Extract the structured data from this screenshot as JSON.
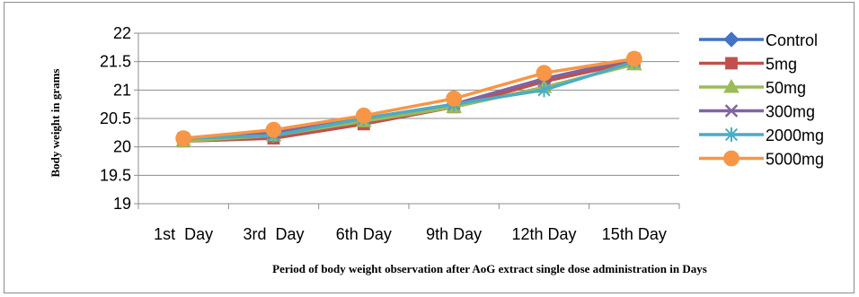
{
  "chart_data": {
    "type": "line",
    "categories": [
      "1st  Day",
      "3rd  Day",
      "6th Day",
      "9th Day",
      "12th Day",
      "15th Day"
    ],
    "xlabel": "Period of  body weight observation after AoG extract single dose administration in Days",
    "ylabel": "Body weight  in grams",
    "ylim": [
      19,
      22
    ],
    "yticks": [
      19,
      19.5,
      20,
      20.5,
      21,
      21.5,
      22
    ],
    "ytick_labels": [
      "19",
      "19.5",
      "20",
      "20.5",
      "21",
      "21.5",
      "22"
    ],
    "grid": true,
    "legend_position": "right",
    "series": [
      {
        "name": "Control",
        "color": "#4472C4",
        "marker": "diamond",
        "values": [
          20.15,
          20.2,
          20.45,
          20.75,
          21.15,
          21.5
        ]
      },
      {
        "name": "5mg",
        "color": "#C0504D",
        "marker": "square",
        "values": [
          20.1,
          20.15,
          20.4,
          20.7,
          21.15,
          21.5
        ]
      },
      {
        "name": "50mg",
        "color": "#9BBB59",
        "marker": "triangle",
        "values": [
          20.1,
          20.2,
          20.45,
          20.7,
          21.05,
          21.45
        ]
      },
      {
        "name": "300mg",
        "color": "#8064A2",
        "marker": "x",
        "values": [
          20.15,
          20.25,
          20.5,
          20.75,
          21.2,
          21.55
        ]
      },
      {
        "name": "2000mg",
        "color": "#4BACC6",
        "marker": "star",
        "values": [
          20.15,
          20.2,
          20.5,
          20.75,
          21.0,
          21.5
        ]
      },
      {
        "name": "5000mg",
        "color": "#F79646",
        "marker": "circle",
        "values": [
          20.15,
          20.3,
          20.55,
          20.85,
          21.3,
          21.55
        ]
      }
    ]
  }
}
